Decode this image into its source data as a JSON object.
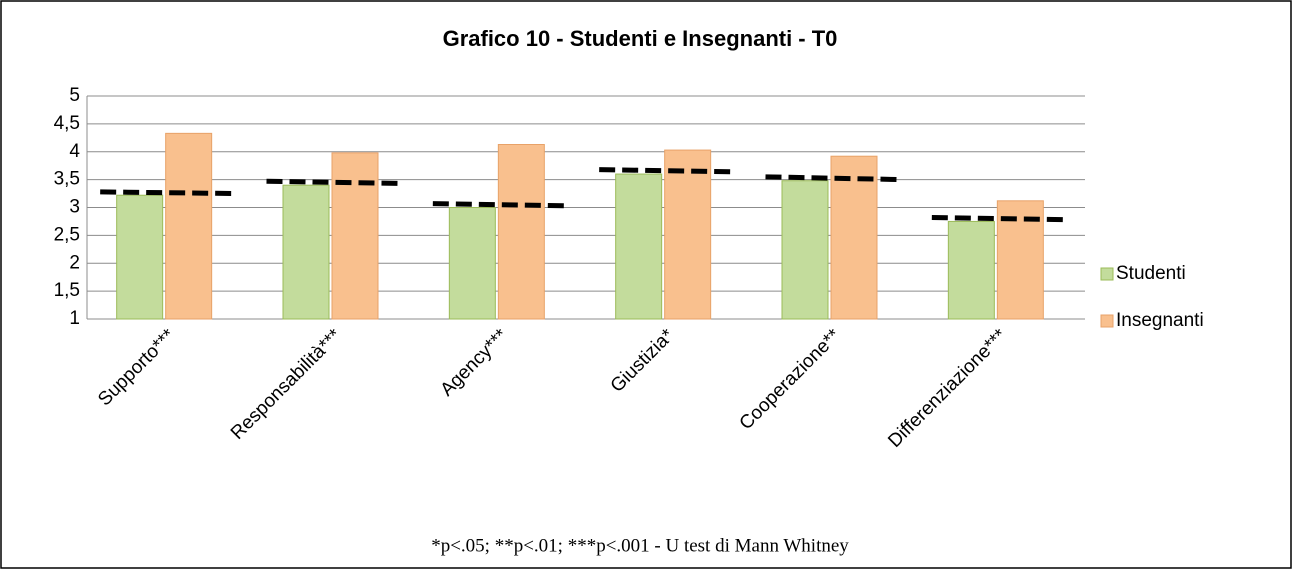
{
  "chart_data": {
    "type": "bar",
    "title": "Grafico 10 - Studenti e Insegnanti - T0",
    "categories": [
      "Supporto***",
      "Responsabilità***",
      "Agency***",
      "Giustizia*",
      "Cooperazione**",
      "Differenziazione***"
    ],
    "series": [
      {
        "name": "Studenti",
        "color": "#c3dc9c",
        "values": [
          3.22,
          3.4,
          3.0,
          3.6,
          3.48,
          2.75
        ]
      },
      {
        "name": "Insegnanti",
        "color": "#f9c08e",
        "values": [
          4.33,
          3.98,
          4.13,
          4.03,
          3.92,
          3.12
        ]
      }
    ],
    "reference_lines": [
      [
        3.28,
        3.25
      ],
      [
        3.47,
        3.43
      ],
      [
        3.07,
        3.03
      ],
      [
        3.68,
        3.64
      ],
      [
        3.55,
        3.5
      ],
      [
        2.82,
        2.78
      ]
    ],
    "ylim": [
      1,
      5
    ],
    "yticks": [
      1,
      {
        "value": 1.5,
        "label": "1,5"
      },
      2,
      {
        "value": 2.5,
        "label": "2,5"
      },
      3,
      {
        "value": 3.5,
        "label": "3,5"
      },
      4,
      {
        "value": 4.5,
        "label": "4,5"
      },
      5
    ],
    "grid": true,
    "legend": "right",
    "note": "*p<.05; **p<.01; ***p<.001 - U test di Mann Whitney"
  }
}
